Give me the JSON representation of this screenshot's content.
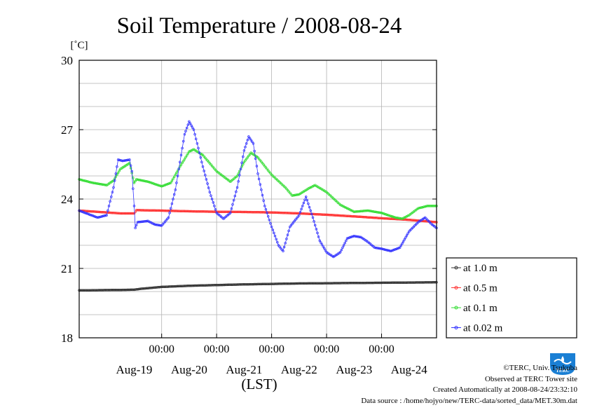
{
  "chart_data": {
    "type": "line",
    "title": "Soil Temperature / 2008-08-24",
    "ylabel": "[˚C]",
    "xlabel": "(LST)",
    "ylim": [
      18,
      30
    ],
    "yticks": [
      18,
      21,
      24,
      27,
      30
    ],
    "xlim": [
      "2008-08-18 12:00",
      "2008-08-24 24:00"
    ],
    "time_tick_label": "00:00",
    "time_ticks": [
      "2008-08-20 00:00",
      "2008-08-21 00:00",
      "2008-08-22 00:00",
      "2008-08-23 00:00",
      "2008-08-24 00:00"
    ],
    "day_labels": [
      {
        "date": "2008-08-19 12:00",
        "label": "Aug-19"
      },
      {
        "date": "2008-08-20 12:00",
        "label": "Aug-20"
      },
      {
        "date": "2008-08-21 12:00",
        "label": "Aug-21"
      },
      {
        "date": "2008-08-22 12:00",
        "label": "Aug-22"
      },
      {
        "date": "2008-08-23 12:00",
        "label": "Aug-23"
      },
      {
        "date": "2008-08-24 12:00",
        "label": "Aug-24"
      }
    ],
    "grid": true,
    "legend_position": "right",
    "series": [
      {
        "name": "at 1.0 m",
        "color": "#333333",
        "points": [
          [
            "2008-08-18 12:00",
            20.05
          ],
          [
            "2008-08-19 06:00",
            20.07
          ],
          [
            "2008-08-19 12:00",
            20.08
          ],
          [
            "2008-08-19 15:00",
            20.12
          ],
          [
            "2008-08-20 00:00",
            20.2
          ],
          [
            "2008-08-20 12:00",
            20.25
          ],
          [
            "2008-08-21 00:00",
            20.28
          ],
          [
            "2008-08-21 12:00",
            20.31
          ],
          [
            "2008-08-22 00:00",
            20.33
          ],
          [
            "2008-08-22 12:00",
            20.35
          ],
          [
            "2008-08-23 00:00",
            20.36
          ],
          [
            "2008-08-23 12:00",
            20.37
          ],
          [
            "2008-08-24 00:00",
            20.38
          ],
          [
            "2008-08-24 12:00",
            20.39
          ],
          [
            "2008-08-24 24:00",
            20.4
          ]
        ]
      },
      {
        "name": "at 0.5 m",
        "color": "#ff3333",
        "points": [
          [
            "2008-08-18 12:00",
            23.5
          ],
          [
            "2008-08-19 00:00",
            23.42
          ],
          [
            "2008-08-19 06:00",
            23.38
          ],
          [
            "2008-08-19 12:00",
            23.38
          ],
          [
            "2008-08-19 13:00",
            23.52
          ],
          [
            "2008-08-20 00:00",
            23.5
          ],
          [
            "2008-08-20 12:00",
            23.47
          ],
          [
            "2008-08-21 00:00",
            23.45
          ],
          [
            "2008-08-21 12:00",
            23.44
          ],
          [
            "2008-08-22 00:00",
            23.42
          ],
          [
            "2008-08-22 12:00",
            23.38
          ],
          [
            "2008-08-23 00:00",
            23.32
          ],
          [
            "2008-08-23 12:00",
            23.25
          ],
          [
            "2008-08-24 00:00",
            23.17
          ],
          [
            "2008-08-24 12:00",
            23.1
          ],
          [
            "2008-08-24 24:00",
            23.0
          ]
        ]
      },
      {
        "name": "at 0.1 m",
        "color": "#33dd33",
        "points": [
          [
            "2008-08-18 12:00",
            24.85
          ],
          [
            "2008-08-18 18:00",
            24.7
          ],
          [
            "2008-08-19 00:00",
            24.6
          ],
          [
            "2008-08-19 03:00",
            24.8
          ],
          [
            "2008-08-19 06:00",
            25.3
          ],
          [
            "2008-08-19 10:00",
            25.55
          ],
          [
            "2008-08-19 12:00",
            24.7
          ],
          [
            "2008-08-19 13:00",
            24.85
          ],
          [
            "2008-08-19 18:00",
            24.75
          ],
          [
            "2008-08-20 00:00",
            24.55
          ],
          [
            "2008-08-20 04:00",
            24.7
          ],
          [
            "2008-08-20 08:00",
            25.4
          ],
          [
            "2008-08-20 12:00",
            26.05
          ],
          [
            "2008-08-20 14:00",
            26.15
          ],
          [
            "2008-08-20 18:00",
            25.9
          ],
          [
            "2008-08-21 00:00",
            25.2
          ],
          [
            "2008-08-21 06:00",
            24.75
          ],
          [
            "2008-08-21 09:00",
            25.0
          ],
          [
            "2008-08-21 12:00",
            25.6
          ],
          [
            "2008-08-21 15:00",
            26.0
          ],
          [
            "2008-08-21 18:00",
            25.8
          ],
          [
            "2008-08-22 00:00",
            25.05
          ],
          [
            "2008-08-22 06:00",
            24.5
          ],
          [
            "2008-08-22 09:00",
            24.15
          ],
          [
            "2008-08-22 12:00",
            24.2
          ],
          [
            "2008-08-22 16:00",
            24.45
          ],
          [
            "2008-08-22 19:00",
            24.6
          ],
          [
            "2008-08-23 00:00",
            24.3
          ],
          [
            "2008-08-23 06:00",
            23.75
          ],
          [
            "2008-08-23 12:00",
            23.45
          ],
          [
            "2008-08-23 18:00",
            23.5
          ],
          [
            "2008-08-24 00:00",
            23.4
          ],
          [
            "2008-08-24 06:00",
            23.2
          ],
          [
            "2008-08-24 09:00",
            23.15
          ],
          [
            "2008-08-24 12:00",
            23.3
          ],
          [
            "2008-08-24 16:00",
            23.6
          ],
          [
            "2008-08-24 20:00",
            23.7
          ],
          [
            "2008-08-24 24:00",
            23.7
          ]
        ]
      },
      {
        "name": "at 0.02 m",
        "color": "#3333ff",
        "points": [
          [
            "2008-08-18 12:00",
            23.5
          ],
          [
            "2008-08-18 16:00",
            23.35
          ],
          [
            "2008-08-18 20:00",
            23.2
          ],
          [
            "2008-08-19 00:00",
            23.3
          ],
          [
            "2008-08-19 03:00",
            24.5
          ],
          [
            "2008-08-19 05:00",
            25.7
          ],
          [
            "2008-08-19 07:00",
            25.65
          ],
          [
            "2008-08-19 10:00",
            25.7
          ],
          [
            "2008-08-19 11:00",
            25.2
          ],
          [
            "2008-08-19 12:00",
            23.7
          ],
          [
            "2008-08-19 12:30",
            22.75
          ],
          [
            "2008-08-19 13:30",
            23.0
          ],
          [
            "2008-08-19 18:00",
            23.05
          ],
          [
            "2008-08-19 21:00",
            22.9
          ],
          [
            "2008-08-20 00:00",
            22.85
          ],
          [
            "2008-08-20 03:00",
            23.2
          ],
          [
            "2008-08-20 06:00",
            24.4
          ],
          [
            "2008-08-20 08:00",
            25.6
          ],
          [
            "2008-08-20 10:00",
            26.8
          ],
          [
            "2008-08-20 12:00",
            27.35
          ],
          [
            "2008-08-20 14:00",
            27.0
          ],
          [
            "2008-08-20 16:00",
            26.2
          ],
          [
            "2008-08-20 18:00",
            25.4
          ],
          [
            "2008-08-20 21:00",
            24.3
          ],
          [
            "2008-08-21 00:00",
            23.4
          ],
          [
            "2008-08-21 03:00",
            23.15
          ],
          [
            "2008-08-21 06:00",
            23.4
          ],
          [
            "2008-08-21 09:00",
            24.5
          ],
          [
            "2008-08-21 12:00",
            26.1
          ],
          [
            "2008-08-21 14:00",
            26.7
          ],
          [
            "2008-08-21 16:00",
            26.4
          ],
          [
            "2008-08-21 18:00",
            25.1
          ],
          [
            "2008-08-21 21:00",
            23.7
          ],
          [
            "2008-08-22 00:00",
            22.8
          ],
          [
            "2008-08-22 03:00",
            22.0
          ],
          [
            "2008-08-22 05:00",
            21.75
          ],
          [
            "2008-08-22 08:00",
            22.8
          ],
          [
            "2008-08-22 12:00",
            23.3
          ],
          [
            "2008-08-22 15:00",
            24.1
          ],
          [
            "2008-08-22 18:00",
            23.2
          ],
          [
            "2008-08-22 21:00",
            22.2
          ],
          [
            "2008-08-23 00:00",
            21.7
          ],
          [
            "2008-08-23 03:00",
            21.5
          ],
          [
            "2008-08-23 06:00",
            21.7
          ],
          [
            "2008-08-23 09:00",
            22.3
          ],
          [
            "2008-08-23 12:00",
            22.4
          ],
          [
            "2008-08-23 15:00",
            22.35
          ],
          [
            "2008-08-23 18:00",
            22.15
          ],
          [
            "2008-08-23 21:00",
            21.9
          ],
          [
            "2008-08-24 00:00",
            21.85
          ],
          [
            "2008-08-24 04:00",
            21.75
          ],
          [
            "2008-08-24 08:00",
            21.9
          ],
          [
            "2008-08-24 12:00",
            22.6
          ],
          [
            "2008-08-24 16:00",
            23.0
          ],
          [
            "2008-08-24 19:00",
            23.2
          ],
          [
            "2008-08-24 22:00",
            22.9
          ],
          [
            "2008-08-24 24:00",
            22.75
          ]
        ]
      }
    ]
  },
  "footer": {
    "copyright": "©TERC, Univ. Tsukuba",
    "observed": "Observed at TERC Tower site",
    "created": "Created Automatically at 2008-08-24/23:32:10",
    "source": "Data source : /home/hojyo/new/TERC-data/sorted_data/MET.30m.dat"
  },
  "logo": {
    "text": "TERC",
    "color": "#1a7fd4"
  }
}
